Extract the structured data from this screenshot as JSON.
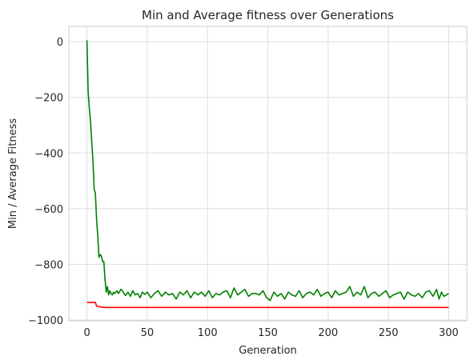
{
  "chart_data": {
    "type": "line",
    "title": "Min and Average fitness over Generations",
    "xlabel": "Generation",
    "ylabel": "Min / Average Fitness",
    "xlim": [
      -15,
      315
    ],
    "ylim": [
      -1003,
      55
    ],
    "xticks": [
      0,
      50,
      100,
      150,
      200,
      250,
      300
    ],
    "yticks": [
      0,
      -200,
      -400,
      -600,
      -800,
      -1000
    ],
    "xtick_labels": [
      "0",
      "50",
      "100",
      "150",
      "200",
      "250",
      "300"
    ],
    "ytick_labels": [
      "0",
      "−200",
      "−400",
      "−600",
      "−800",
      "−1000"
    ],
    "grid": true,
    "series": [
      {
        "color": "#008000",
        "x": [
          0,
          1,
          2,
          3,
          4,
          5,
          6,
          7,
          8,
          9,
          10,
          11,
          12,
          13,
          14,
          15,
          16,
          17,
          18,
          19,
          20,
          21,
          22,
          23,
          24,
          25,
          26,
          27,
          28,
          29,
          30,
          32,
          34,
          36,
          38,
          40,
          42,
          44,
          46,
          48,
          50,
          53,
          56,
          59,
          62,
          65,
          68,
          71,
          74,
          77,
          80,
          83,
          86,
          89,
          92,
          95,
          98,
          101,
          104,
          107,
          110,
          113,
          116,
          119,
          122,
          125,
          128,
          131,
          134,
          137,
          140,
          143,
          146,
          149,
          152,
          155,
          158,
          161,
          164,
          167,
          170,
          173,
          176,
          179,
          182,
          185,
          188,
          191,
          194,
          197,
          200,
          203,
          206,
          209,
          212,
          215,
          218,
          221,
          224,
          227,
          230,
          233,
          236,
          239,
          242,
          245,
          248,
          251,
          254,
          257,
          260,
          263,
          266,
          269,
          272,
          275,
          278,
          281,
          284,
          287,
          290,
          292,
          294,
          296,
          298,
          300
        ],
        "values": [
          5,
          -180,
          -240,
          -290,
          -360,
          -430,
          -530,
          -545,
          -640,
          -700,
          -775,
          -765,
          -770,
          -790,
          -790,
          -855,
          -900,
          -880,
          -910,
          -895,
          -905,
          -910,
          -900,
          -905,
          -900,
          -895,
          -905,
          -900,
          -890,
          -892,
          -900,
          -912,
          -900,
          -915,
          -895,
          -910,
          -905,
          -920,
          -900,
          -908,
          -900,
          -920,
          -905,
          -895,
          -915,
          -900,
          -910,
          -905,
          -925,
          -900,
          -910,
          -895,
          -920,
          -900,
          -910,
          -900,
          -915,
          -895,
          -920,
          -905,
          -910,
          -900,
          -895,
          -920,
          -885,
          -910,
          -900,
          -890,
          -915,
          -905,
          -905,
          -910,
          -895,
          -920,
          -930,
          -900,
          -915,
          -905,
          -925,
          -900,
          -910,
          -915,
          -895,
          -920,
          -905,
          -900,
          -910,
          -890,
          -915,
          -905,
          -900,
          -920,
          -895,
          -910,
          -905,
          -900,
          -880,
          -915,
          -900,
          -910,
          -880,
          -920,
          -905,
          -900,
          -915,
          -905,
          -895,
          -920,
          -910,
          -905,
          -900,
          -925,
          -900,
          -910,
          -915,
          -905,
          -920,
          -900,
          -895,
          -915,
          -890,
          -925,
          -900,
          -915,
          -910,
          -905
        ]
      },
      {
        "color": "#ff0000",
        "x": [
          0,
          7,
          8,
          10,
          12,
          15,
          20,
          300
        ],
        "values": [
          -937,
          -937,
          -950,
          -952,
          -954,
          -955,
          -955,
          -955
        ]
      }
    ]
  }
}
